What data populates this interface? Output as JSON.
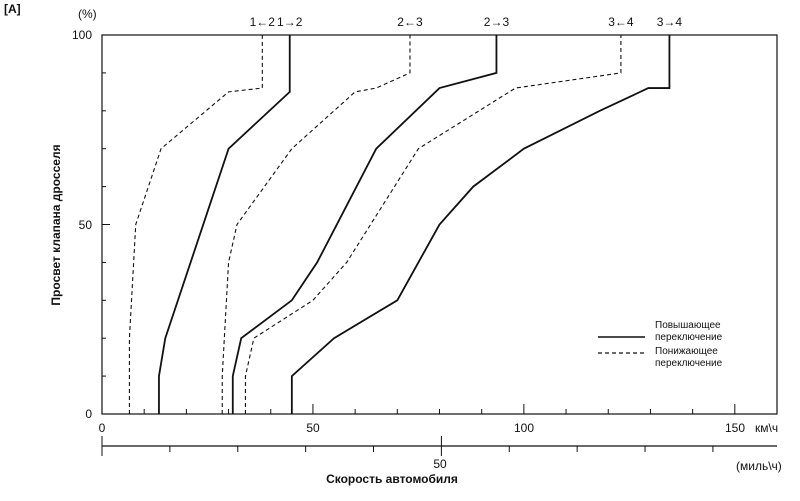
{
  "panel_label": "[A]",
  "chart_data": {
    "type": "line",
    "ylabel": "Просвет клапана дросселя",
    "y_unit": "(%)",
    "ylim": [
      0,
      100
    ],
    "y_ticks": [
      "0",
      "50",
      "100"
    ],
    "x_unit_primary": "км\\ч",
    "xlim_kmh": [
      0,
      160
    ],
    "x_ticks_kmh": [
      "0",
      "50",
      "100",
      "150"
    ],
    "x_unit_secondary": "(миль\\ч)",
    "x_ticks_mph": [
      "50"
    ],
    "xlabel": "Скорость автомобиля",
    "legend": [
      {
        "label": "Повышающее переключение",
        "style": "solid"
      },
      {
        "label": "Понижающее переключение",
        "style": "dashed"
      }
    ],
    "series": [
      {
        "name": "1←2",
        "style": "dashed",
        "points": [
          [
            6.5,
            0
          ],
          [
            6.5,
            20
          ],
          [
            8,
            50
          ],
          [
            14,
            70
          ],
          [
            30,
            85
          ],
          [
            38,
            86
          ],
          [
            38,
            100
          ]
        ]
      },
      {
        "name": "1→2",
        "style": "solid",
        "points": [
          [
            13.5,
            0
          ],
          [
            13.5,
            10
          ],
          [
            15,
            20
          ],
          [
            30,
            70
          ],
          [
            44.5,
            85
          ],
          [
            44.5,
            100
          ]
        ]
      },
      {
        "name": "2←3",
        "style": "dashed",
        "points": [
          [
            28.5,
            0
          ],
          [
            28.5,
            10
          ],
          [
            30,
            40
          ],
          [
            32,
            50
          ],
          [
            45,
            70
          ],
          [
            60,
            85
          ],
          [
            65,
            86
          ],
          [
            73,
            90
          ],
          [
            73,
            100
          ]
        ]
      },
      {
        "name": "2→3",
        "style": "solid",
        "points": [
          [
            31,
            0
          ],
          [
            31,
            10
          ],
          [
            33,
            20
          ],
          [
            45,
            30
          ],
          [
            51,
            40
          ],
          [
            65,
            70
          ],
          [
            80,
            86
          ],
          [
            93.5,
            90
          ],
          [
            93.5,
            100
          ]
        ]
      },
      {
        "name": "3←4",
        "style": "dashed",
        "points": [
          [
            34,
            0
          ],
          [
            34,
            10
          ],
          [
            36,
            20
          ],
          [
            50,
            30
          ],
          [
            58,
            40
          ],
          [
            75,
            70
          ],
          [
            98,
            86
          ],
          [
            123,
            90
          ],
          [
            123,
            100
          ]
        ]
      },
      {
        "name": "3→4",
        "style": "solid",
        "points": [
          [
            45,
            0
          ],
          [
            45,
            10
          ],
          [
            55,
            20
          ],
          [
            70,
            30
          ],
          [
            80,
            50
          ],
          [
            88,
            60
          ],
          [
            100,
            70
          ],
          [
            118,
            80
          ],
          [
            129.5,
            86
          ],
          [
            134.5,
            86
          ],
          [
            134.5,
            100
          ]
        ]
      }
    ]
  }
}
